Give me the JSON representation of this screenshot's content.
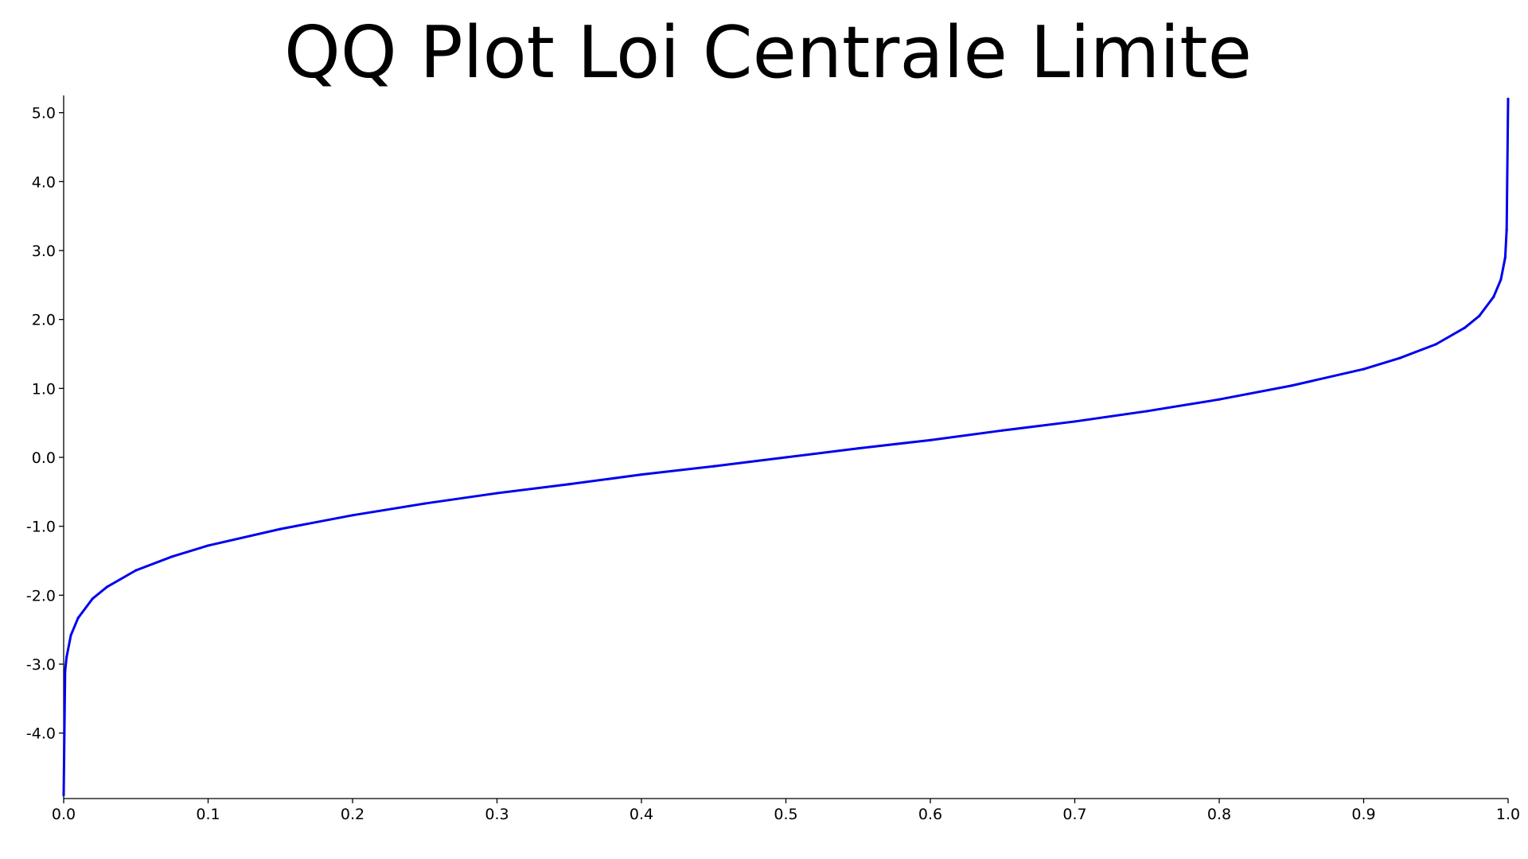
{
  "chart_data": {
    "type": "scatter",
    "title": "QQ Plot Loi Centrale Limite",
    "xlabel": "",
    "ylabel": "",
    "xlim": [
      0.0,
      1.0
    ],
    "ylim": [
      -4.95,
      5.25
    ],
    "x_ticks": [
      "0.0",
      "0.1",
      "0.2",
      "0.3",
      "0.4",
      "0.5",
      "0.6",
      "0.7",
      "0.8",
      "0.9",
      "1.0"
    ],
    "y_ticks": [
      "-4.0",
      "-3.0",
      "-2.0",
      "-1.0",
      "0.0",
      "1.0",
      "2.0",
      "3.0",
      "4.0",
      "5.0"
    ],
    "grid": false,
    "series": [
      {
        "color": "#0000ee",
        "marker": "dot",
        "x": [
          0.0,
          0.001,
          0.002,
          0.005,
          0.01,
          0.02,
          0.03,
          0.05,
          0.075,
          0.1,
          0.15,
          0.2,
          0.25,
          0.3,
          0.35,
          0.4,
          0.45,
          0.5,
          0.55,
          0.6,
          0.65,
          0.7,
          0.75,
          0.8,
          0.85,
          0.9,
          0.925,
          0.95,
          0.97,
          0.98,
          0.99,
          0.995,
          0.998,
          0.999,
          1.0
        ],
        "y": [
          -4.9,
          -3.1,
          -2.9,
          -2.58,
          -2.33,
          -2.05,
          -1.88,
          -1.64,
          -1.44,
          -1.28,
          -1.04,
          -0.84,
          -0.67,
          -0.52,
          -0.39,
          -0.25,
          -0.13,
          0.0,
          0.13,
          0.25,
          0.39,
          0.52,
          0.67,
          0.84,
          1.04,
          1.28,
          1.44,
          1.64,
          1.88,
          2.05,
          2.33,
          2.58,
          2.9,
          3.3,
          5.2
        ]
      }
    ]
  }
}
